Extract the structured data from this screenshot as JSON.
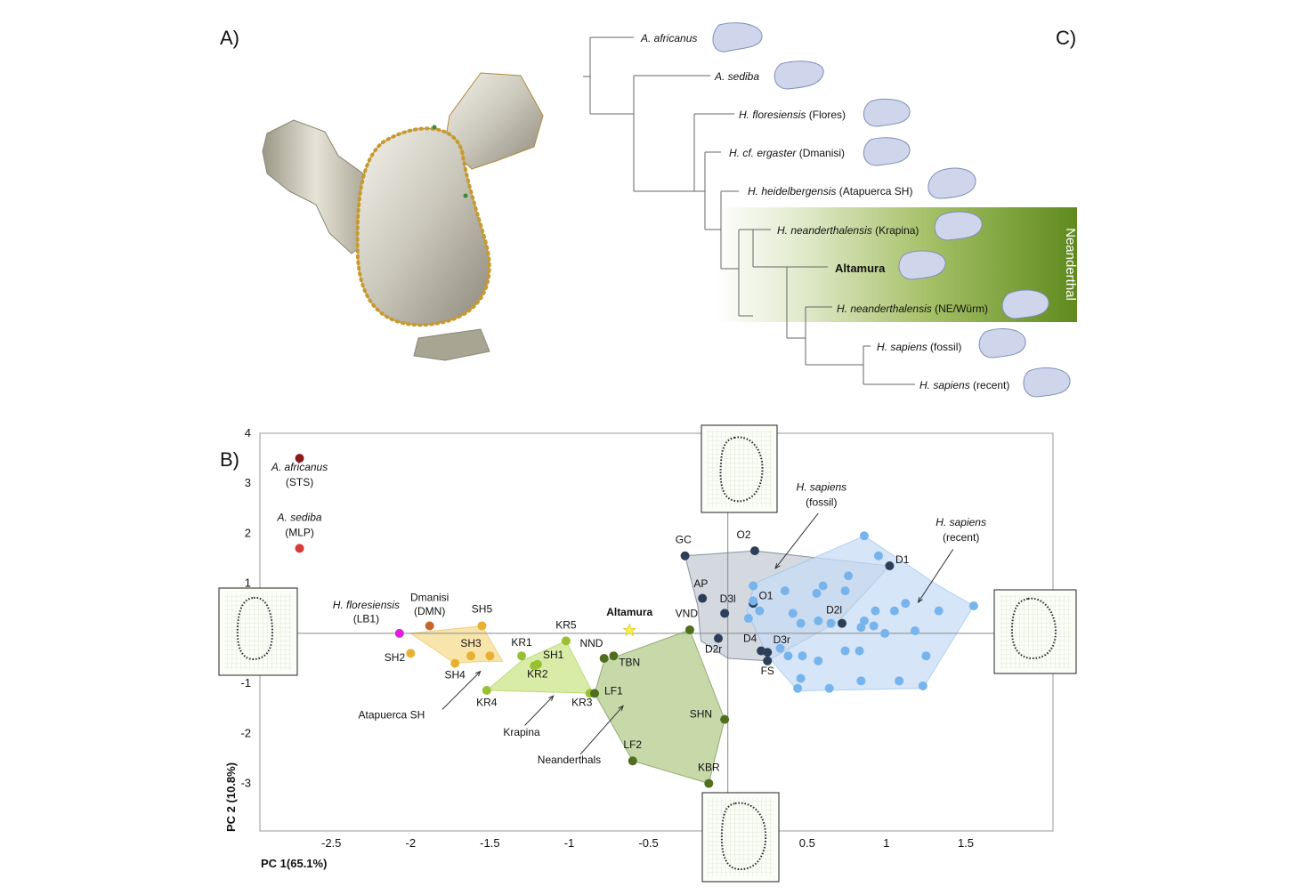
{
  "panels": {
    "a": "A)",
    "b": "B)",
    "c": "C)"
  },
  "tree": {
    "neanderthal_band_label": "Neanderthal",
    "taxa": [
      {
        "genus": "A. africanus",
        "rest": ""
      },
      {
        "genus": "A. sediba",
        "rest": ""
      },
      {
        "genus": "H. floresiensis",
        "rest": " (Flores)"
      },
      {
        "genus": "H. cf. ergaster",
        "rest": " (Dmanisi)"
      },
      {
        "genus": "H. heidelbergensis",
        "rest": " (Atapuerca SH)"
      },
      {
        "genus": "H. neanderthalensis",
        "rest": " (Krapina)"
      },
      {
        "genus": "Altamura",
        "rest": "",
        "bold": true
      },
      {
        "genus": "H. neanderthalensis",
        "rest": " (NE/Würm)"
      },
      {
        "genus": "H. sapiens",
        "rest": " (fossil)"
      },
      {
        "genus": "H. sapiens",
        "rest": " (recent)"
      }
    ]
  },
  "chart_data": {
    "type": "scatter",
    "xlabel": "PC 1(65.1%)",
    "ylabel": "PC 2 (10.8%)",
    "xlim": [
      -2.95,
      2.05
    ],
    "ylim": [
      -3.95,
      4.0
    ],
    "xticks": [
      -2.5,
      -2,
      -1.5,
      -1,
      -0.5,
      0.5,
      1,
      1.5
    ],
    "yticks": [
      4,
      3,
      2,
      1,
      -1,
      -2,
      -3
    ],
    "colors": {
      "africanus": "#8b1a1a",
      "sediba": "#d63a3a",
      "floresiensis": "#e020e0",
      "dmanisi": "#c8652a",
      "atapuerca": "#e8b030",
      "krapina": "#98c030",
      "neanderthal": "#4f6e1e",
      "altamura": "#f8f050",
      "sapiens_fossil": "#2c3e58",
      "sapiens_recent": "#78b4ec"
    },
    "hulls": [
      {
        "group": "atapuerca",
        "fill": "#f5dc90",
        "points": [
          [
            -2.0,
            0.0
          ],
          [
            -1.72,
            -0.6
          ],
          [
            -1.55,
            -0.56
          ],
          [
            -1.42,
            -0.56
          ],
          [
            -1.55,
            0.15
          ]
        ]
      },
      {
        "group": "krapina",
        "fill": "#cce58a",
        "points": [
          [
            -1.52,
            -1.14
          ],
          [
            -1.3,
            -0.55
          ],
          [
            -1.02,
            -0.15
          ],
          [
            -0.85,
            -1.2
          ]
        ]
      },
      {
        "group": "neanderthal",
        "fill": "#b4cc8c",
        "points": [
          [
            -0.84,
            -1.2
          ],
          [
            -0.78,
            -0.55
          ],
          [
            -0.24,
            0.07
          ],
          [
            -0.02,
            -1.72
          ],
          [
            -0.12,
            -3.0
          ],
          [
            -0.6,
            -2.55
          ]
        ]
      },
      {
        "group": "sapiens_fossil",
        "fill": "#c5ccd6",
        "points": [
          [
            -0.27,
            1.55
          ],
          [
            0.17,
            1.65
          ],
          [
            1.02,
            1.35
          ],
          [
            0.7,
            0.25
          ],
          [
            0.25,
            -0.55
          ],
          [
            0.0,
            -0.5
          ],
          [
            -0.17,
            -0.15
          ],
          [
            -0.19,
            0.55
          ]
        ]
      },
      {
        "group": "sapiens_recent",
        "fill": "#c8dcf5",
        "points": [
          [
            0.17,
            1.0
          ],
          [
            0.86,
            1.95
          ],
          [
            1.33,
            0.95
          ],
          [
            1.55,
            0.55
          ],
          [
            1.23,
            -1.1
          ],
          [
            0.44,
            -1.15
          ],
          [
            0.25,
            -0.45
          ],
          [
            0.12,
            0.45
          ]
        ]
      }
    ],
    "points": [
      {
        "id": "africanus",
        "group": "africanus",
        "x": -2.7,
        "y": 3.5
      },
      {
        "id": "sediba",
        "group": "sediba",
        "x": -2.7,
        "y": 1.7
      },
      {
        "id": "LB1",
        "group": "floresiensis",
        "x": -2.07,
        "y": 0.0
      },
      {
        "id": "DMN",
        "group": "dmanisi",
        "x": -1.88,
        "y": 0.15
      },
      {
        "id": "SH5",
        "group": "atapuerca",
        "x": -1.55,
        "y": 0.15
      },
      {
        "id": "SH2",
        "group": "atapuerca",
        "x": -2.0,
        "y": -0.4
      },
      {
        "id": "SH3",
        "group": "atapuerca",
        "x": -1.62,
        "y": -0.45
      },
      {
        "id": "SH3b",
        "group": "atapuerca",
        "x": -1.5,
        "y": -0.45
      },
      {
        "id": "SH4",
        "group": "atapuerca",
        "x": -1.72,
        "y": -0.6
      },
      {
        "id": "KR5",
        "group": "krapina",
        "x": -1.02,
        "y": -0.15
      },
      {
        "id": "KR1",
        "group": "krapina",
        "x": -1.3,
        "y": -0.45
      },
      {
        "id": "SH1",
        "group": "krapina",
        "x": -1.2,
        "y": -0.62
      },
      {
        "id": "KR2",
        "group": "krapina",
        "x": -1.22,
        "y": -0.65
      },
      {
        "id": "KR4",
        "group": "krapina",
        "x": -1.52,
        "y": -1.14
      },
      {
        "id": "KR3",
        "group": "krapina",
        "x": -0.87,
        "y": -1.2
      },
      {
        "id": "NND",
        "group": "neanderthal",
        "x": -0.78,
        "y": -0.5
      },
      {
        "id": "TBN",
        "group": "neanderthal",
        "x": -0.72,
        "y": -0.45
      },
      {
        "id": "VND",
        "group": "neanderthal",
        "x": -0.24,
        "y": 0.07
      },
      {
        "id": "LF1",
        "group": "neanderthal",
        "x": -0.84,
        "y": -1.2
      },
      {
        "id": "SHN",
        "group": "neanderthal",
        "x": -0.02,
        "y": -1.72
      },
      {
        "id": "LF2",
        "group": "neanderthal",
        "x": -0.6,
        "y": -2.55
      },
      {
        "id": "KBR",
        "group": "neanderthal",
        "x": -0.12,
        "y": -3.0
      },
      {
        "id": "Altamura",
        "group": "altamura",
        "x": -0.62,
        "y": 0.06,
        "star": true
      },
      {
        "id": "GC",
        "group": "sapiens_fossil",
        "x": -0.27,
        "y": 1.55
      },
      {
        "id": "O2",
        "group": "sapiens_fossil",
        "x": 0.17,
        "y": 1.65
      },
      {
        "id": "D1",
        "group": "sapiens_fossil",
        "x": 1.02,
        "y": 1.35
      },
      {
        "id": "AP",
        "group": "sapiens_fossil",
        "x": -0.16,
        "y": 0.7
      },
      {
        "id": "O1",
        "group": "sapiens_fossil",
        "x": 0.16,
        "y": 0.6
      },
      {
        "id": "D3l",
        "group": "sapiens_fossil",
        "x": -0.02,
        "y": 0.4
      },
      {
        "id": "D2l",
        "group": "sapiens_fossil",
        "x": 0.72,
        "y": 0.2
      },
      {
        "id": "D2r",
        "group": "sapiens_fossil",
        "x": -0.06,
        "y": -0.1
      },
      {
        "id": "D4",
        "group": "sapiens_fossil",
        "x": 0.21,
        "y": -0.35
      },
      {
        "id": "D3r",
        "group": "sapiens_fossil",
        "x": 0.25,
        "y": -0.38
      },
      {
        "id": "FS",
        "group": "sapiens_fossil",
        "x": 0.25,
        "y": -0.55
      },
      {
        "id": "r1",
        "group": "sapiens_recent",
        "x": 0.86,
        "y": 1.95
      },
      {
        "id": "r2",
        "group": "sapiens_recent",
        "x": 0.95,
        "y": 1.55
      },
      {
        "id": "r3",
        "group": "sapiens_recent",
        "x": 0.76,
        "y": 1.15
      },
      {
        "id": "r4",
        "group": "sapiens_recent",
        "x": 0.6,
        "y": 0.95
      },
      {
        "id": "r5",
        "group": "sapiens_recent",
        "x": 0.74,
        "y": 0.85
      },
      {
        "id": "r6",
        "group": "sapiens_recent",
        "x": 0.56,
        "y": 0.8
      },
      {
        "id": "r7",
        "group": "sapiens_recent",
        "x": 0.36,
        "y": 0.85
      },
      {
        "id": "r8",
        "group": "sapiens_recent",
        "x": 0.16,
        "y": 0.95
      },
      {
        "id": "r9",
        "group": "sapiens_recent",
        "x": 0.13,
        "y": 0.3
      },
      {
        "id": "r10",
        "group": "sapiens_recent",
        "x": 0.16,
        "y": 0.65
      },
      {
        "id": "r11",
        "group": "sapiens_recent",
        "x": 0.2,
        "y": 0.45
      },
      {
        "id": "r12",
        "group": "sapiens_recent",
        "x": 0.41,
        "y": 0.4
      },
      {
        "id": "r13",
        "group": "sapiens_recent",
        "x": 0.46,
        "y": 0.2
      },
      {
        "id": "r14",
        "group": "sapiens_recent",
        "x": 0.57,
        "y": 0.25
      },
      {
        "id": "r15",
        "group": "sapiens_recent",
        "x": 0.65,
        "y": 0.2
      },
      {
        "id": "r16",
        "group": "sapiens_recent",
        "x": 0.86,
        "y": 0.25
      },
      {
        "id": "r17",
        "group": "sapiens_recent",
        "x": 0.93,
        "y": 0.45
      },
      {
        "id": "r18",
        "group": "sapiens_recent",
        "x": 1.05,
        "y": 0.45
      },
      {
        "id": "r19",
        "group": "sapiens_recent",
        "x": 1.12,
        "y": 0.6
      },
      {
        "id": "r20",
        "group": "sapiens_recent",
        "x": 1.33,
        "y": 0.45
      },
      {
        "id": "r21",
        "group": "sapiens_recent",
        "x": 1.55,
        "y": 0.55
      },
      {
        "id": "r22",
        "group": "sapiens_recent",
        "x": 0.84,
        "y": 0.12
      },
      {
        "id": "r23",
        "group": "sapiens_recent",
        "x": 0.92,
        "y": 0.15
      },
      {
        "id": "r24",
        "group": "sapiens_recent",
        "x": 0.99,
        "y": 0.0
      },
      {
        "id": "r25",
        "group": "sapiens_recent",
        "x": 1.18,
        "y": 0.05
      },
      {
        "id": "r26",
        "group": "sapiens_recent",
        "x": 1.25,
        "y": -0.45
      },
      {
        "id": "r27",
        "group": "sapiens_recent",
        "x": 0.38,
        "y": -0.45
      },
      {
        "id": "r28",
        "group": "sapiens_recent",
        "x": 0.47,
        "y": -0.45
      },
      {
        "id": "r29",
        "group": "sapiens_recent",
        "x": 0.57,
        "y": -0.55
      },
      {
        "id": "r30",
        "group": "sapiens_recent",
        "x": 0.74,
        "y": -0.35
      },
      {
        "id": "r31",
        "group": "sapiens_recent",
        "x": 0.83,
        "y": -0.35
      },
      {
        "id": "r32",
        "group": "sapiens_recent",
        "x": 0.46,
        "y": -0.9
      },
      {
        "id": "r33",
        "group": "sapiens_recent",
        "x": 0.64,
        "y": -1.1
      },
      {
        "id": "r34",
        "group": "sapiens_recent",
        "x": 0.44,
        "y": -1.1
      },
      {
        "id": "r35",
        "group": "sapiens_recent",
        "x": 1.08,
        "y": -0.95
      },
      {
        "id": "r36",
        "group": "sapiens_recent",
        "x": 1.23,
        "y": -1.05
      },
      {
        "id": "r37",
        "group": "sapiens_recent",
        "x": 0.84,
        "y": -0.95
      },
      {
        "id": "r38",
        "group": "sapiens_recent",
        "x": 0.33,
        "y": -0.3
      }
    ],
    "labels": [
      {
        "text": "A. africanus",
        "italic": true,
        "x": -2.7,
        "y": 3.25
      },
      {
        "text": "(STS)",
        "x": -2.7,
        "y": 2.95
      },
      {
        "text": "A. sediba",
        "italic": true,
        "x": -2.7,
        "y": 2.25
      },
      {
        "text": "(MLP)",
        "x": -2.7,
        "y": 1.95
      },
      {
        "text": "H. floresiensis",
        "italic": true,
        "x": -2.28,
        "y": 0.5
      },
      {
        "text": "(LB1)",
        "x": -2.28,
        "y": 0.22
      },
      {
        "text": "Dmanisi",
        "x": -1.88,
        "y": 0.65
      },
      {
        "text": "(DMN)",
        "x": -1.88,
        "y": 0.37
      },
      {
        "text": "SH5",
        "x": -1.55,
        "y": 0.42
      },
      {
        "text": "SH3",
        "x": -1.62,
        "y": -0.27
      },
      {
        "text": "SH2",
        "x": -2.1,
        "y": -0.55
      },
      {
        "text": "SH4",
        "x": -1.72,
        "y": -0.9
      },
      {
        "text": "KR5",
        "x": -1.02,
        "y": 0.1
      },
      {
        "text": "KR1",
        "x": -1.3,
        "y": -0.25
      },
      {
        "text": "SH1",
        "x": -1.1,
        "y": -0.5
      },
      {
        "text": "KR2",
        "x": -1.2,
        "y": -0.88
      },
      {
        "text": "KR4",
        "x": -1.52,
        "y": -1.45
      },
      {
        "text": "KR3",
        "x": -0.92,
        "y": -1.45
      },
      {
        "text": "NND",
        "x": -0.86,
        "y": -0.27
      },
      {
        "text": "TBN",
        "x": -0.62,
        "y": -0.65
      },
      {
        "text": "VND",
        "x": -0.26,
        "y": 0.33
      },
      {
        "text": "Altamura",
        "bold": true,
        "size": 14,
        "x": -0.62,
        "y": 0.35
      },
      {
        "text": "LF1",
        "x": -0.72,
        "y": -1.22
      },
      {
        "text": "SHN",
        "x": -0.17,
        "y": -1.68
      },
      {
        "text": "LF2",
        "x": -0.6,
        "y": -2.3
      },
      {
        "text": "KBR",
        "x": -0.12,
        "y": -2.75
      },
      {
        "text": "GC",
        "x": -0.28,
        "y": 1.8
      },
      {
        "text": "O2",
        "x": 0.1,
        "y": 1.9
      },
      {
        "text": "D1",
        "x": 1.1,
        "y": 1.4
      },
      {
        "text": "AP",
        "x": -0.17,
        "y": 0.92
      },
      {
        "text": "D3l",
        "x": 0.0,
        "y": 0.62
      },
      {
        "text": "O1",
        "x": 0.24,
        "y": 0.68
      },
      {
        "text": "D2l",
        "x": 0.67,
        "y": 0.4
      },
      {
        "text": "D4",
        "x": 0.14,
        "y": -0.17
      },
      {
        "text": "D3r",
        "x": 0.34,
        "y": -0.2
      },
      {
        "text": "D2r",
        "x": -0.09,
        "y": -0.38
      },
      {
        "text": "FS",
        "x": 0.25,
        "y": -0.82
      },
      {
        "text": "H. sapiens",
        "italic": true,
        "x": 0.59,
        "y": 2.85
      },
      {
        "text": "(fossil)",
        "x": 0.59,
        "y": 2.55
      },
      {
        "text": "H. sapiens",
        "italic": true,
        "x": 1.47,
        "y": 2.15
      },
      {
        "text": "(recent)",
        "x": 1.47,
        "y": 1.85
      },
      {
        "text": "Atapuerca SH",
        "x": -2.12,
        "y": -1.7
      },
      {
        "text": "Krapina",
        "x": -1.3,
        "y": -2.05
      },
      {
        "text": "Neanderthals",
        "x": -1.0,
        "y": -2.6
      }
    ],
    "arrows": [
      {
        "from": [
          -1.8,
          -1.52
        ],
        "to": [
          -1.56,
          -0.76
        ]
      },
      {
        "from": [
          -1.28,
          -1.84
        ],
        "to": [
          -1.1,
          -1.25
        ]
      },
      {
        "from": [
          -0.93,
          -2.42
        ],
        "to": [
          -0.66,
          -1.45
        ]
      },
      {
        "from": [
          0.57,
          2.4
        ],
        "to": [
          0.3,
          1.3
        ]
      },
      {
        "from": [
          1.42,
          1.68
        ],
        "to": [
          1.2,
          0.62
        ]
      }
    ]
  }
}
